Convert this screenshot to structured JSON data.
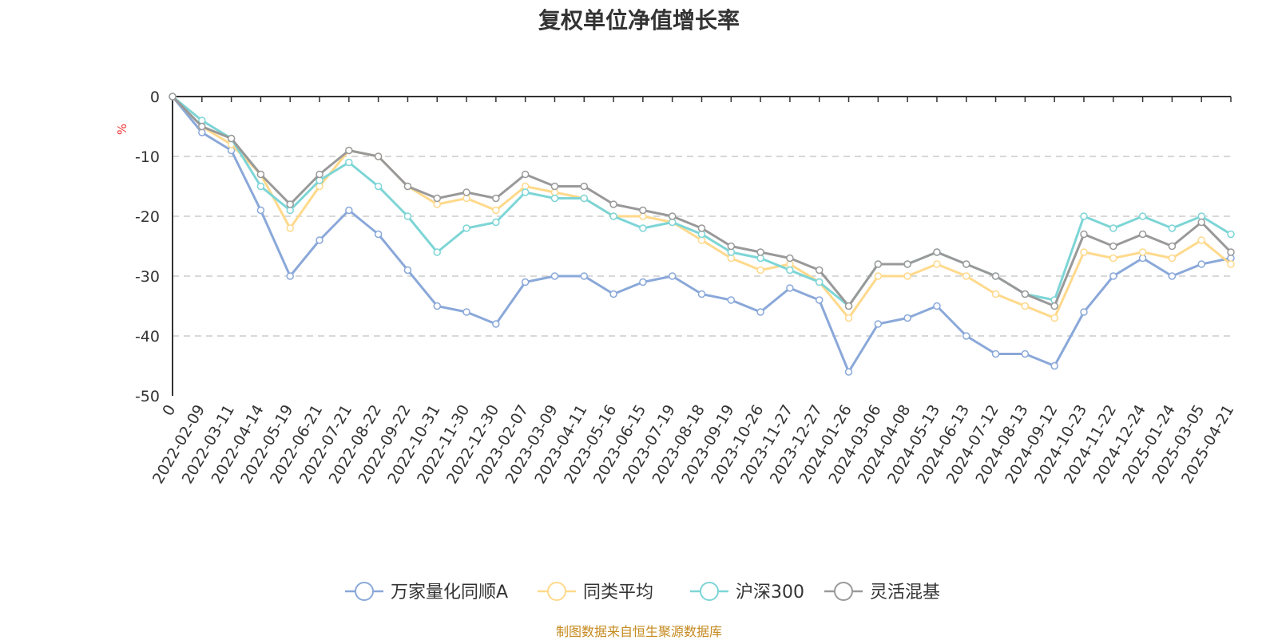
{
  "chart_data": {
    "type": "line",
    "title": "复权单位净值增长率",
    "ylabel": "%",
    "ylim": [
      -50,
      0
    ],
    "yticks": [
      0,
      -10,
      -20,
      -30,
      -40,
      -50
    ],
    "grid": true,
    "legend_position": "bottom",
    "x": [
      "0",
      "2022-02-09",
      "2022-03-11",
      "2022-04-14",
      "2022-05-19",
      "2022-06-21",
      "2022-07-21",
      "2022-08-22",
      "2022-09-22",
      "2022-10-31",
      "2022-11-30",
      "2022-12-30",
      "2023-02-07",
      "2023-03-09",
      "2023-04-11",
      "2023-05-16",
      "2023-06-15",
      "2023-07-19",
      "2023-08-18",
      "2023-09-19",
      "2023-10-26",
      "2023-11-27",
      "2023-12-27",
      "2024-01-26",
      "2024-03-06",
      "2024-04-08",
      "2024-05-13",
      "2024-06-13",
      "2024-07-12",
      "2024-08-13",
      "2024-09-12",
      "2024-10-23",
      "2024-11-22",
      "2024-12-24",
      "2025-01-24",
      "2025-03-05",
      "2025-04-21"
    ],
    "series": [
      {
        "name": "万家量化同顺A",
        "color": "#8aa8d9",
        "values": [
          0,
          -6,
          -9,
          -19,
          -30,
          -24,
          -19,
          -23,
          -29,
          -35,
          -36,
          -38,
          -31,
          -30,
          -30,
          -33,
          -31,
          -30,
          -33,
          -34,
          -36,
          -32,
          -34,
          -46,
          -38,
          -37,
          -35,
          -40,
          -43,
          -43,
          -45,
          -36,
          -30,
          -27,
          -30,
          -28,
          -27
        ]
      },
      {
        "name": "同类平均",
        "color": "#ffd98c",
        "values": [
          0,
          -5,
          -8,
          -13,
          -22,
          -15,
          -9,
          -10,
          -15,
          -18,
          -17,
          -19,
          -15,
          -16,
          -17,
          -20,
          -20,
          -21,
          -24,
          -27,
          -29,
          -28,
          -31,
          -37,
          -30,
          -30,
          -28,
          -30,
          -33,
          -35,
          -37,
          -26,
          -27,
          -26,
          -27,
          -24,
          -28
        ]
      },
      {
        "name": "沪深300",
        "color": "#7dd5d6",
        "values": [
          0,
          -4,
          -7,
          -15,
          -19,
          -14,
          -11,
          -15,
          -20,
          -26,
          -22,
          -21,
          -16,
          -17,
          -17,
          -20,
          -22,
          -21,
          -23,
          -26,
          -27,
          -29,
          -31,
          -35,
          -28,
          -28,
          -26,
          -28,
          -30,
          -33,
          -34,
          -20,
          -22,
          -20,
          -22,
          -20,
          -23
        ]
      },
      {
        "name": "灵活混基",
        "color": "#999999",
        "values": [
          0,
          -5,
          -7,
          -13,
          -18,
          -13,
          -9,
          -10,
          -15,
          -17,
          -16,
          -17,
          -13,
          -15,
          -15,
          -18,
          -19,
          -20,
          -22,
          -25,
          -26,
          -27,
          -29,
          -35,
          -28,
          -28,
          -26,
          -28,
          -30,
          -33,
          -35,
          -23,
          -25,
          -23,
          -25,
          -21,
          -26
        ]
      }
    ]
  },
  "source_note": "制图数据来自恒生聚源数据库"
}
